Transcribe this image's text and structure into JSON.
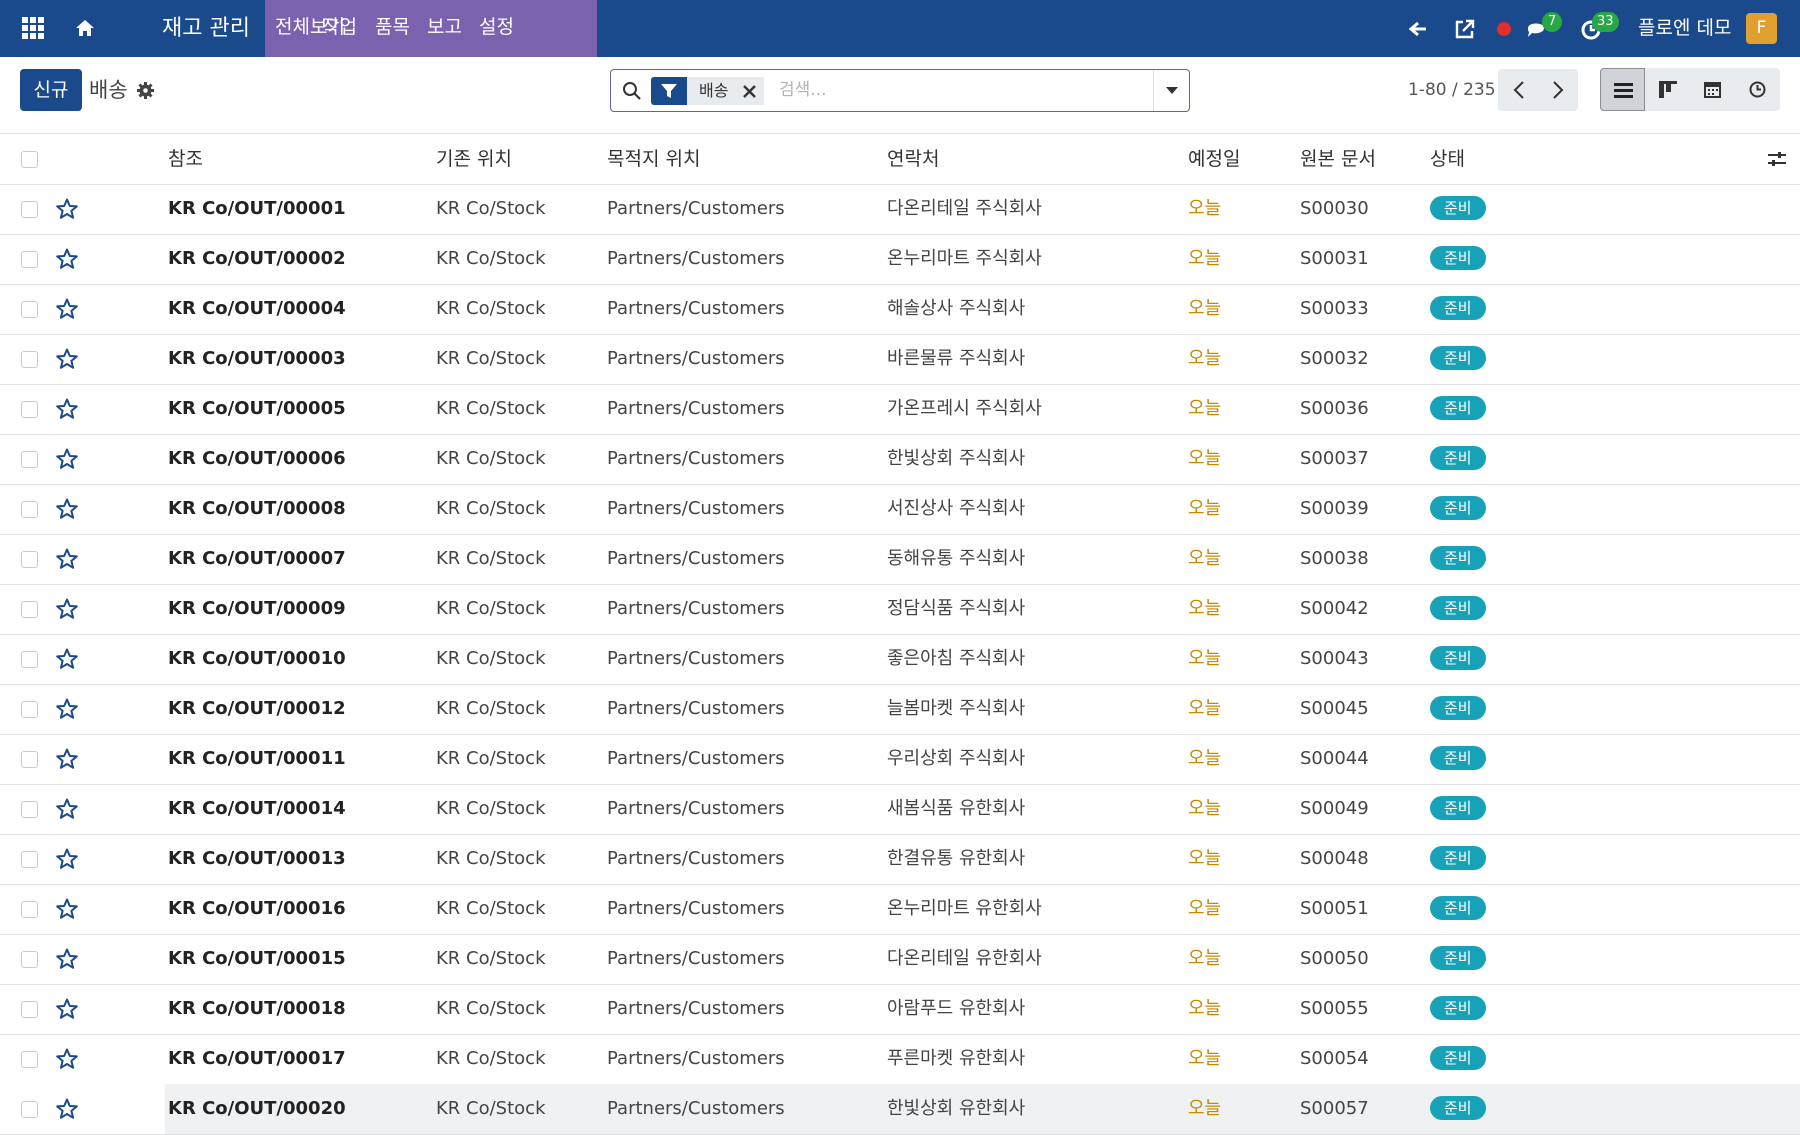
{
  "navbar": {
    "app_name": "재고 관리",
    "menu": [
      "전체보기",
      "작업",
      "품목",
      "보고",
      "설정"
    ],
    "messages_count": 7,
    "activities_count": 33,
    "user": "플로엔 데모",
    "avatar": "F"
  },
  "control_panel": {
    "new_button": "신규",
    "breadcrumb": "배송",
    "search": {
      "facet": "배송",
      "placeholder": "검색..."
    },
    "pager": "1-80 / 235"
  },
  "table": {
    "headers": [
      "참조",
      "기존 위치",
      "목적지 위치",
      "연락처",
      "예정일",
      "원본 문서",
      "상태"
    ],
    "rows": [
      [
        "KR Co/OUT/00001",
        "KR Co/Stock",
        "Partners/Customers",
        "다온리테일 주식회사",
        "오늘",
        "S00030",
        "준비"
      ],
      [
        "KR Co/OUT/00002",
        "KR Co/Stock",
        "Partners/Customers",
        "온누리마트 주식회사",
        "오늘",
        "S00031",
        "준비"
      ],
      [
        "KR Co/OUT/00004",
        "KR Co/Stock",
        "Partners/Customers",
        "해솔상사 주식회사",
        "오늘",
        "S00033",
        "준비"
      ],
      [
        "KR Co/OUT/00003",
        "KR Co/Stock",
        "Partners/Customers",
        "바른물류 주식회사",
        "오늘",
        "S00032",
        "준비"
      ],
      [
        "KR Co/OUT/00005",
        "KR Co/Stock",
        "Partners/Customers",
        "가온프레시 주식회사",
        "오늘",
        "S00036",
        "준비"
      ],
      [
        "KR Co/OUT/00006",
        "KR Co/Stock",
        "Partners/Customers",
        "한빛상회 주식회사",
        "오늘",
        "S00037",
        "준비"
      ],
      [
        "KR Co/OUT/00008",
        "KR Co/Stock",
        "Partners/Customers",
        "서진상사 주식회사",
        "오늘",
        "S00039",
        "준비"
      ],
      [
        "KR Co/OUT/00007",
        "KR Co/Stock",
        "Partners/Customers",
        "동해유통 주식회사",
        "오늘",
        "S00038",
        "준비"
      ],
      [
        "KR Co/OUT/00009",
        "KR Co/Stock",
        "Partners/Customers",
        "정담식품 주식회사",
        "오늘",
        "S00042",
        "준비"
      ],
      [
        "KR Co/OUT/00010",
        "KR Co/Stock",
        "Partners/Customers",
        "좋은아침 주식회사",
        "오늘",
        "S00043",
        "준비"
      ],
      [
        "KR Co/OUT/00012",
        "KR Co/Stock",
        "Partners/Customers",
        "늘봄마켓 주식회사",
        "오늘",
        "S00045",
        "준비"
      ],
      [
        "KR Co/OUT/00011",
        "KR Co/Stock",
        "Partners/Customers",
        "우리상회 주식회사",
        "오늘",
        "S00044",
        "준비"
      ],
      [
        "KR Co/OUT/00014",
        "KR Co/Stock",
        "Partners/Customers",
        "새봄식품 유한회사",
        "오늘",
        "S00049",
        "준비"
      ],
      [
        "KR Co/OUT/00013",
        "KR Co/Stock",
        "Partners/Customers",
        "한결유통 유한회사",
        "오늘",
        "S00048",
        "준비"
      ],
      [
        "KR Co/OUT/00016",
        "KR Co/Stock",
        "Partners/Customers",
        "온누리마트 유한회사",
        "오늘",
        "S00051",
        "준비"
      ],
      [
        "KR Co/OUT/00015",
        "KR Co/Stock",
        "Partners/Customers",
        "다온리테일 유한회사",
        "오늘",
        "S00050",
        "준비"
      ],
      [
        "KR Co/OUT/00018",
        "KR Co/Stock",
        "Partners/Customers",
        "아람푸드 유한회사",
        "오늘",
        "S00055",
        "준비"
      ],
      [
        "KR Co/OUT/00017",
        "KR Co/Stock",
        "Partners/Customers",
        "푸른마켓 유한회사",
        "오늘",
        "S00054",
        "준비"
      ],
      [
        "KR Co/OUT/00020",
        "KR Co/Stock",
        "Partners/Customers",
        "한빛상회 유한회사",
        "오늘",
        "S00057",
        "준비"
      ]
    ]
  }
}
